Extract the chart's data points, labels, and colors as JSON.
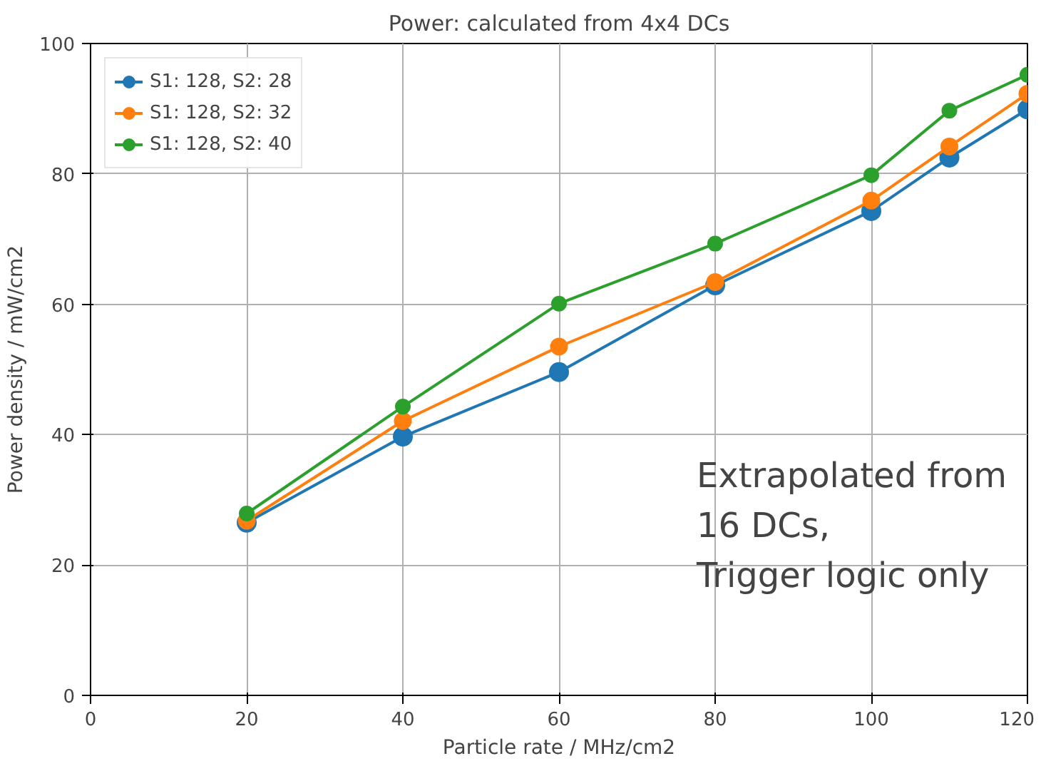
{
  "chart_data": {
    "type": "line",
    "title": "Power: calculated from 4x4 DCs",
    "xlabel": "Particle rate / MHz/cm2",
    "ylabel": "Power density / mW/cm2",
    "x": [
      20,
      40,
      60,
      80,
      100,
      110,
      120
    ],
    "series": [
      {
        "name": "S1: 128, S2: 28",
        "color": "#1f77b4",
        "values": [
          26.5,
          39.7,
          49.6,
          62.9,
          74.3,
          82.5,
          89.9
        ]
      },
      {
        "name": "S1: 128, S2: 32",
        "color": "#ff7f0e",
        "values": [
          26.8,
          42.1,
          53.5,
          63.4,
          75.9,
          84.2,
          92.3
        ]
      },
      {
        "name": "S1: 128, S2: 40",
        "color": "#2ca02c",
        "values": [
          27.9,
          44.3,
          60.1,
          69.3,
          79.8,
          89.7,
          95.2
        ]
      }
    ],
    "xlim": [
      0,
      120
    ],
    "xticks": [
      0,
      20,
      40,
      60,
      80,
      100,
      120
    ],
    "ylim": [
      0,
      100
    ],
    "yticks": [
      0,
      20,
      40,
      60,
      80,
      100
    ],
    "grid": true,
    "legend": "top left",
    "marker": "circle",
    "line_style": "solid",
    "annotations": [
      "Extrapolated from\n16 DCs,\nTrigger logic only"
    ]
  }
}
